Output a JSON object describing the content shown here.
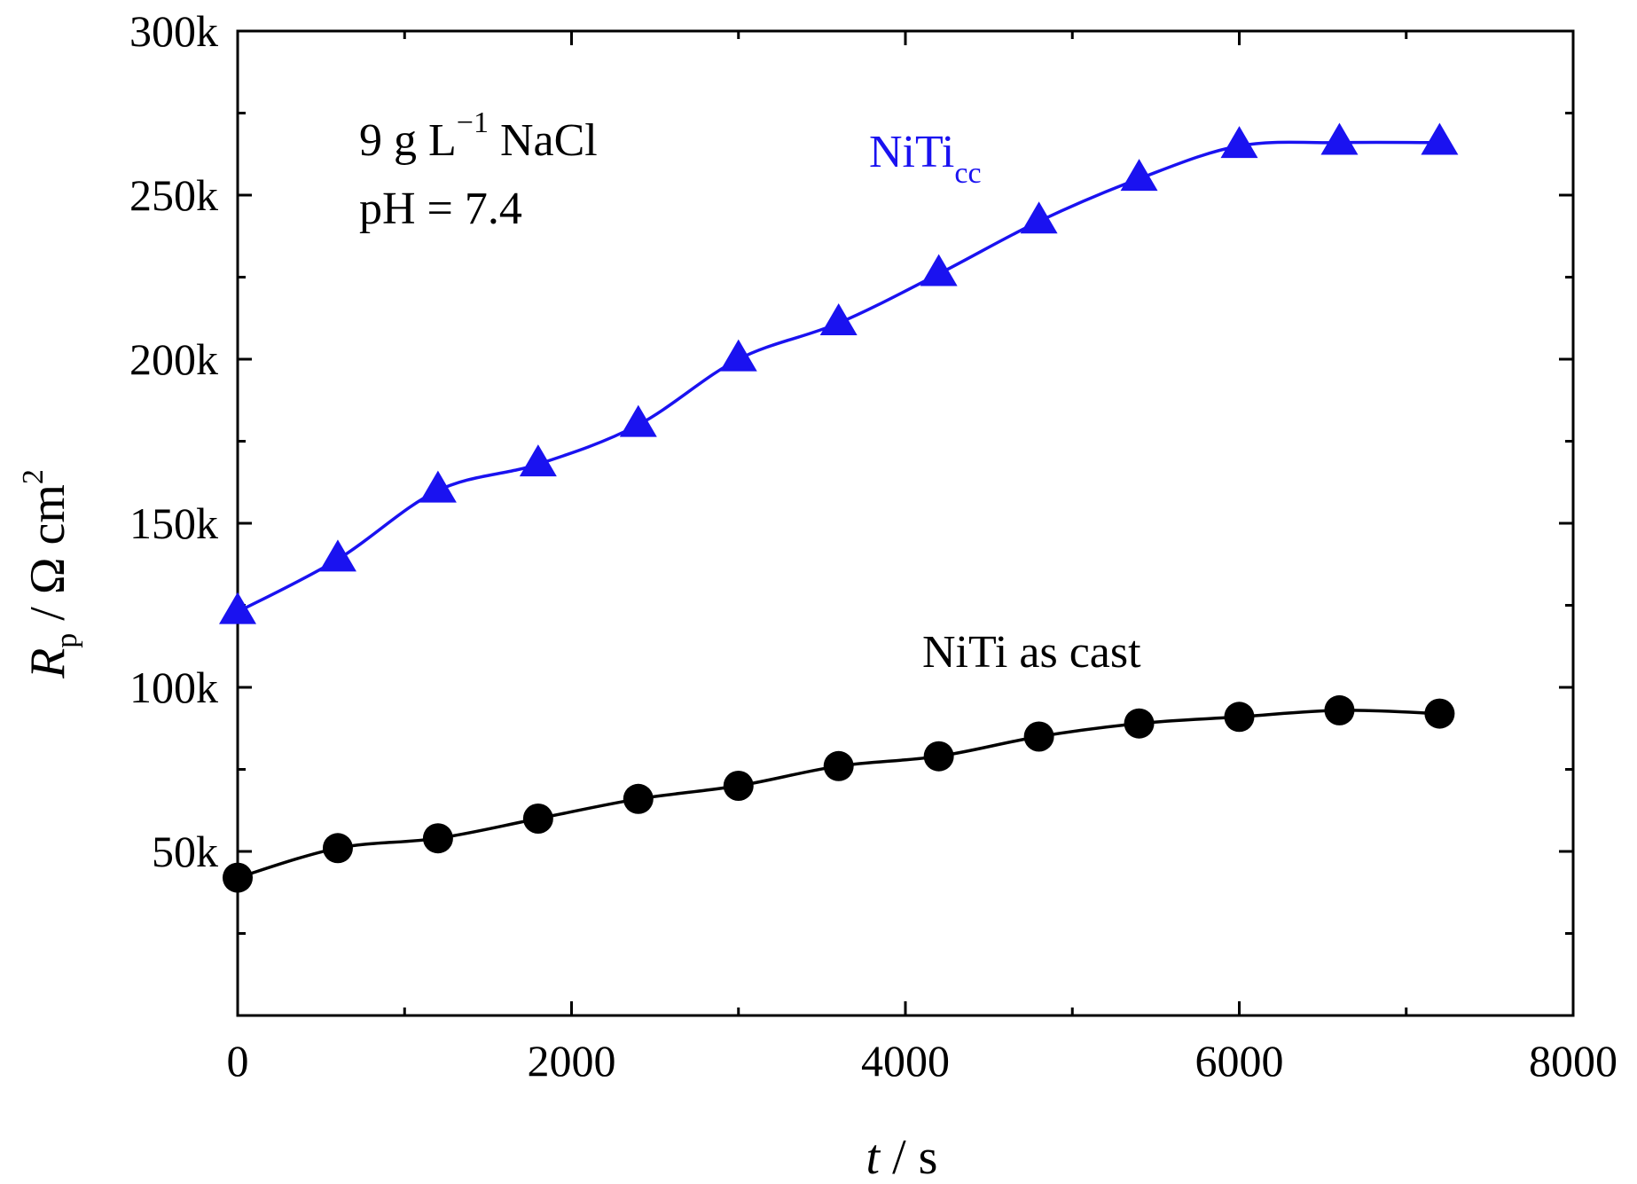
{
  "chart_data": {
    "type": "line",
    "title": "",
    "xlabel": {
      "symbol": "t",
      "unit": "s"
    },
    "ylabel": {
      "symbol": "R",
      "subscript": "p",
      "unit": "Ω cm",
      "unit_superscript": "2"
    },
    "xlim": [
      0,
      8000
    ],
    "ylim": [
      0,
      300000
    ],
    "x_ticks": [
      {
        "value": 0,
        "label": "0"
      },
      {
        "value": 2000,
        "label": "2000"
      },
      {
        "value": 4000,
        "label": "4000"
      },
      {
        "value": 6000,
        "label": "6000"
      },
      {
        "value": 8000,
        "label": "8000"
      }
    ],
    "y_ticks": [
      {
        "value": 50000,
        "label": "50k"
      },
      {
        "value": 100000,
        "label": "100k"
      },
      {
        "value": 150000,
        "label": "150k"
      },
      {
        "value": 200000,
        "label": "200k"
      },
      {
        "value": 250000,
        "label": "250k"
      },
      {
        "value": 300000,
        "label": "300k"
      }
    ],
    "grid": false,
    "series": [
      {
        "name": "NiTi cc",
        "label_main": "NiTi",
        "label_sub": "cc",
        "color": "#1a12f0",
        "marker": "triangle",
        "x": [
          0,
          600,
          1200,
          1800,
          2400,
          3000,
          3600,
          4200,
          4800,
          5400,
          6000,
          6600,
          7200
        ],
        "values": [
          123000,
          139000,
          160000,
          168000,
          180000,
          200000,
          211000,
          226000,
          242000,
          255000,
          265000,
          266000,
          266000
        ]
      },
      {
        "name": "NiTi as cast",
        "label_main": "NiTi as cast",
        "color": "#000000",
        "marker": "circle",
        "x": [
          0,
          600,
          1200,
          1800,
          2400,
          3000,
          3600,
          4200,
          4800,
          5400,
          6000,
          6600,
          7200
        ],
        "values": [
          42000,
          51000,
          54000,
          60000,
          66000,
          70000,
          76000,
          79000,
          85000,
          89000,
          91000,
          93000,
          92000
        ]
      }
    ],
    "annotations": {
      "conc_value": "9 g L",
      "conc_exp": "−1",
      "conc_salt": " NaCl",
      "ph": "pH = 7.4"
    }
  }
}
